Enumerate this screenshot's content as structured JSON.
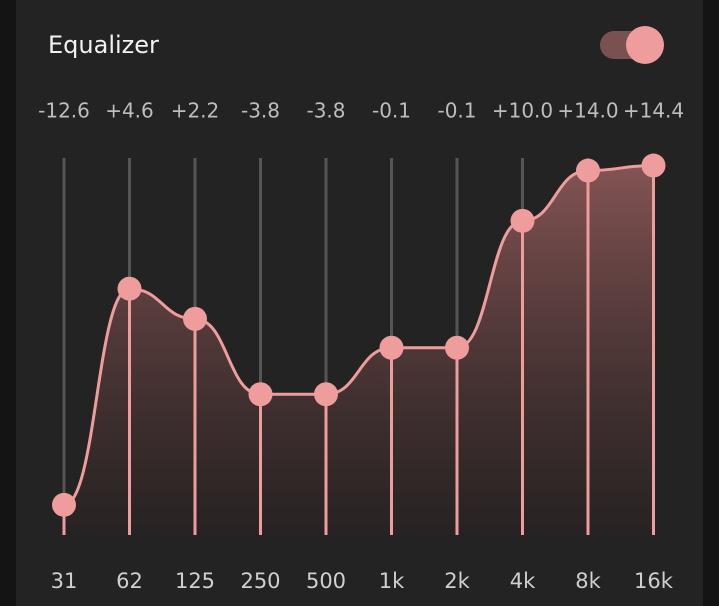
{
  "chart_data": {
    "type": "line",
    "title": "Equalizer",
    "categories": [
      "31",
      "62",
      "125",
      "250",
      "500",
      "1k",
      "2k",
      "4k",
      "8k",
      "16k"
    ],
    "values": [
      -12.6,
      4.6,
      2.2,
      -3.8,
      -3.8,
      -0.1,
      -0.1,
      10.0,
      14.0,
      14.4
    ],
    "value_labels": [
      "-12.6",
      "+4.6",
      "+2.2",
      "-3.8",
      "-3.8",
      "-0.1",
      "-0.1",
      "+10.0",
      "+14.0",
      "+14.4"
    ],
    "color": "#ee9c9c",
    "ylim": [
      -15,
      15
    ]
  }
}
